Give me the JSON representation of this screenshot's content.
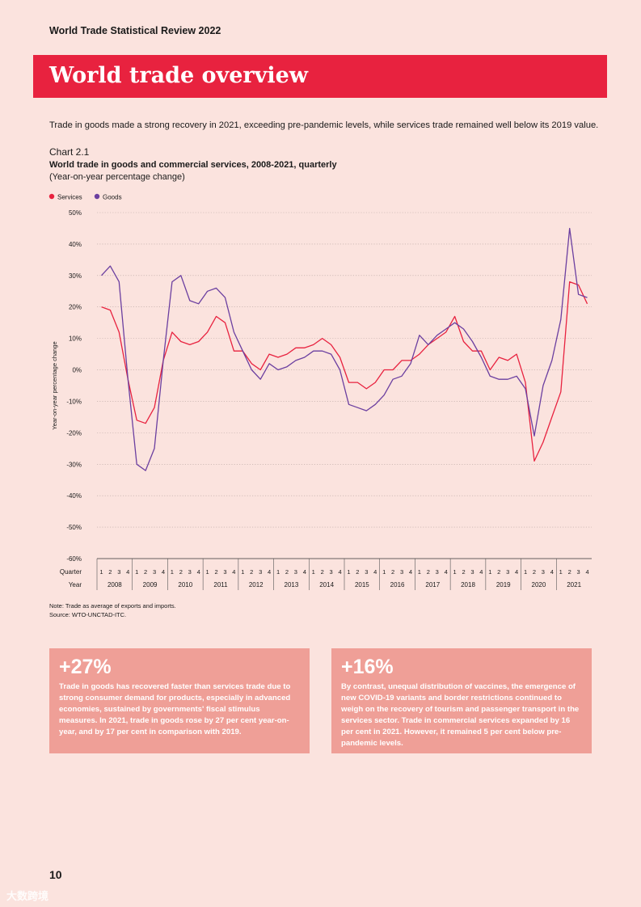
{
  "header": {
    "running_title": "World Trade Statistical Review 2022"
  },
  "banner": {
    "title": "World trade overview",
    "color": "#e8223f"
  },
  "intro": "Trade in goods made a strong recovery in 2021, exceeding pre-pandemic levels, while services trade remained well below its 2019 value.",
  "chart_data": {
    "type": "line",
    "number": "Chart 2.1",
    "title": "World trade in goods and commercial services, 2008-2021, quarterly",
    "subtitle": "(Year-on-year percentage change)",
    "ylabel": "Year-on-year percentage change",
    "ylim": [
      -60,
      50
    ],
    "yticks": [
      50,
      40,
      30,
      20,
      10,
      0,
      -10,
      -20,
      -30,
      -40,
      -50,
      -60
    ],
    "ytick_labels": [
      "50%",
      "40%",
      "30%",
      "20%",
      "10%",
      "0%",
      "-10%",
      "-20%",
      "-30%",
      "-40%",
      "-50%",
      "-60%"
    ],
    "x_row_labels": {
      "quarter": "Quarter",
      "year": "Year"
    },
    "years": [
      "2008",
      "2009",
      "2010",
      "2011",
      "2012",
      "2013",
      "2014",
      "2015",
      "2016",
      "2017",
      "2018",
      "2019",
      "2020",
      "2021"
    ],
    "quarters": [
      "1",
      "2",
      "3",
      "4"
    ],
    "legend": [
      "Services",
      "Goods"
    ],
    "series": [
      {
        "name": "Services",
        "color": "#e8223f",
        "values": [
          20,
          19,
          12,
          -3,
          -16,
          -17,
          -12,
          3,
          12,
          9,
          8,
          9,
          12,
          17,
          15,
          6,
          6,
          2,
          0,
          5,
          4,
          5,
          7,
          7,
          8,
          10,
          8,
          4,
          -4,
          -4,
          -6,
          -4,
          0,
          0,
          3,
          3,
          5,
          8,
          10,
          12,
          17,
          9,
          6,
          6,
          0,
          4,
          3,
          5,
          -4,
          -29,
          -23,
          -15,
          -7,
          28,
          27,
          21
        ]
      },
      {
        "name": "Goods",
        "color": "#6b3fa0",
        "values": [
          30,
          33,
          28,
          -3,
          -30,
          -32,
          -25,
          3,
          28,
          30,
          22,
          21,
          25,
          26,
          23,
          12,
          6,
          0,
          -3,
          2,
          0,
          1,
          3,
          4,
          6,
          6,
          5,
          0,
          -11,
          -12,
          -13,
          -11,
          -8,
          -3,
          -2,
          2,
          11,
          8,
          11,
          13,
          15,
          13,
          9,
          4,
          -2,
          -3,
          -3,
          -2,
          -6,
          -21,
          -5,
          3,
          16,
          45,
          24,
          23
        ]
      }
    ]
  },
  "notes": {
    "note": "Note: Trade as average of exports and imports.",
    "source": "Source: WTO-UNCTAD-ITC."
  },
  "boxes": [
    {
      "stat": "+27%",
      "text": "Trade in goods has recovered faster than services trade due to strong consumer demand for products, especially in advanced economies, sustained by governments' fiscal stimulus measures. In 2021, trade in goods rose by 27 per cent year-on-year, and by 17 per cent in comparison with 2019."
    },
    {
      "stat": "+16%",
      "text": "By contrast, unequal distribution of vaccines, the emergence of new COVID-19 variants and border restrictions continued to weigh on the recovery of tourism and passenger transport in the services sector. Trade in commercial services expanded by 16 per cent in 2021. However, it remained 5 per cent below pre-pandemic levels."
    }
  ],
  "footer": {
    "page_number": "10",
    "watermark": "大数跨境"
  }
}
